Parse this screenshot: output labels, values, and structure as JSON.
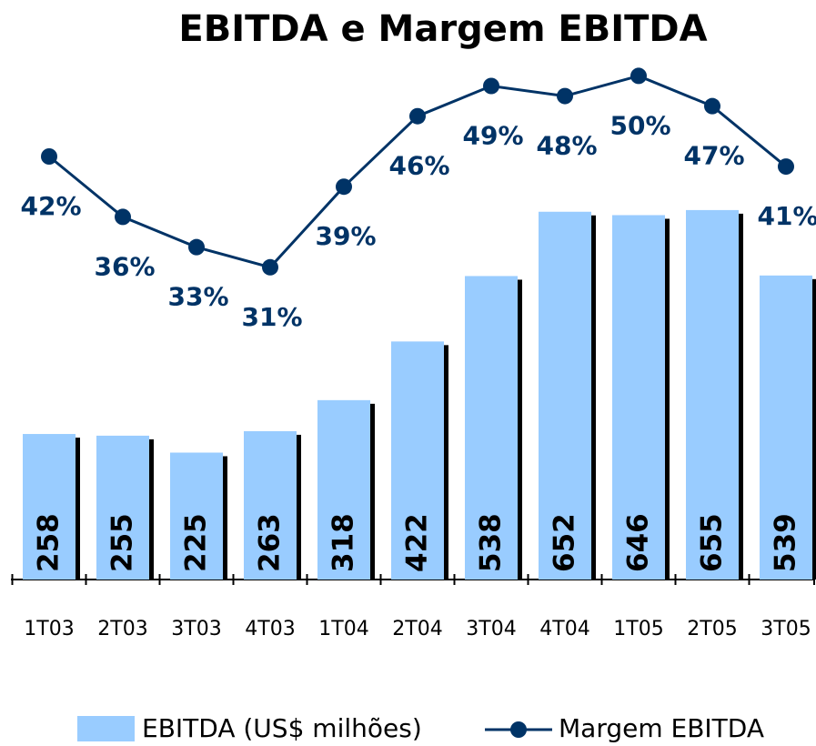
{
  "chart_data": {
    "type": "bar",
    "title": "EBITDA e Margem EBITDA",
    "categories": [
      "1T03",
      "2T03",
      "3T03",
      "4T03",
      "1T04",
      "2T04",
      "3T04",
      "4T04",
      "1T05",
      "2T05",
      "3T05"
    ],
    "series": [
      {
        "name": "EBITDA (US$ milhões)",
        "type": "bar",
        "color": "#99ccff",
        "values": [
          258,
          255,
          225,
          263,
          318,
          422,
          538,
          652,
          646,
          655,
          539
        ]
      },
      {
        "name": "Margem EBITDA",
        "type": "line",
        "axis": "y2",
        "color": "#003366",
        "values": [
          42,
          36,
          33,
          31,
          39,
          46,
          49,
          48,
          50,
          47,
          41
        ],
        "value_labels": [
          "42%",
          "36%",
          "33%",
          "31%",
          "39%",
          "46%",
          "49%",
          "48%",
          "50%",
          "47%",
          "41%"
        ]
      }
    ],
    "ylim": [
      0,
      1000
    ],
    "y2lim": [
      0,
      56
    ],
    "legend": "bottom"
  }
}
